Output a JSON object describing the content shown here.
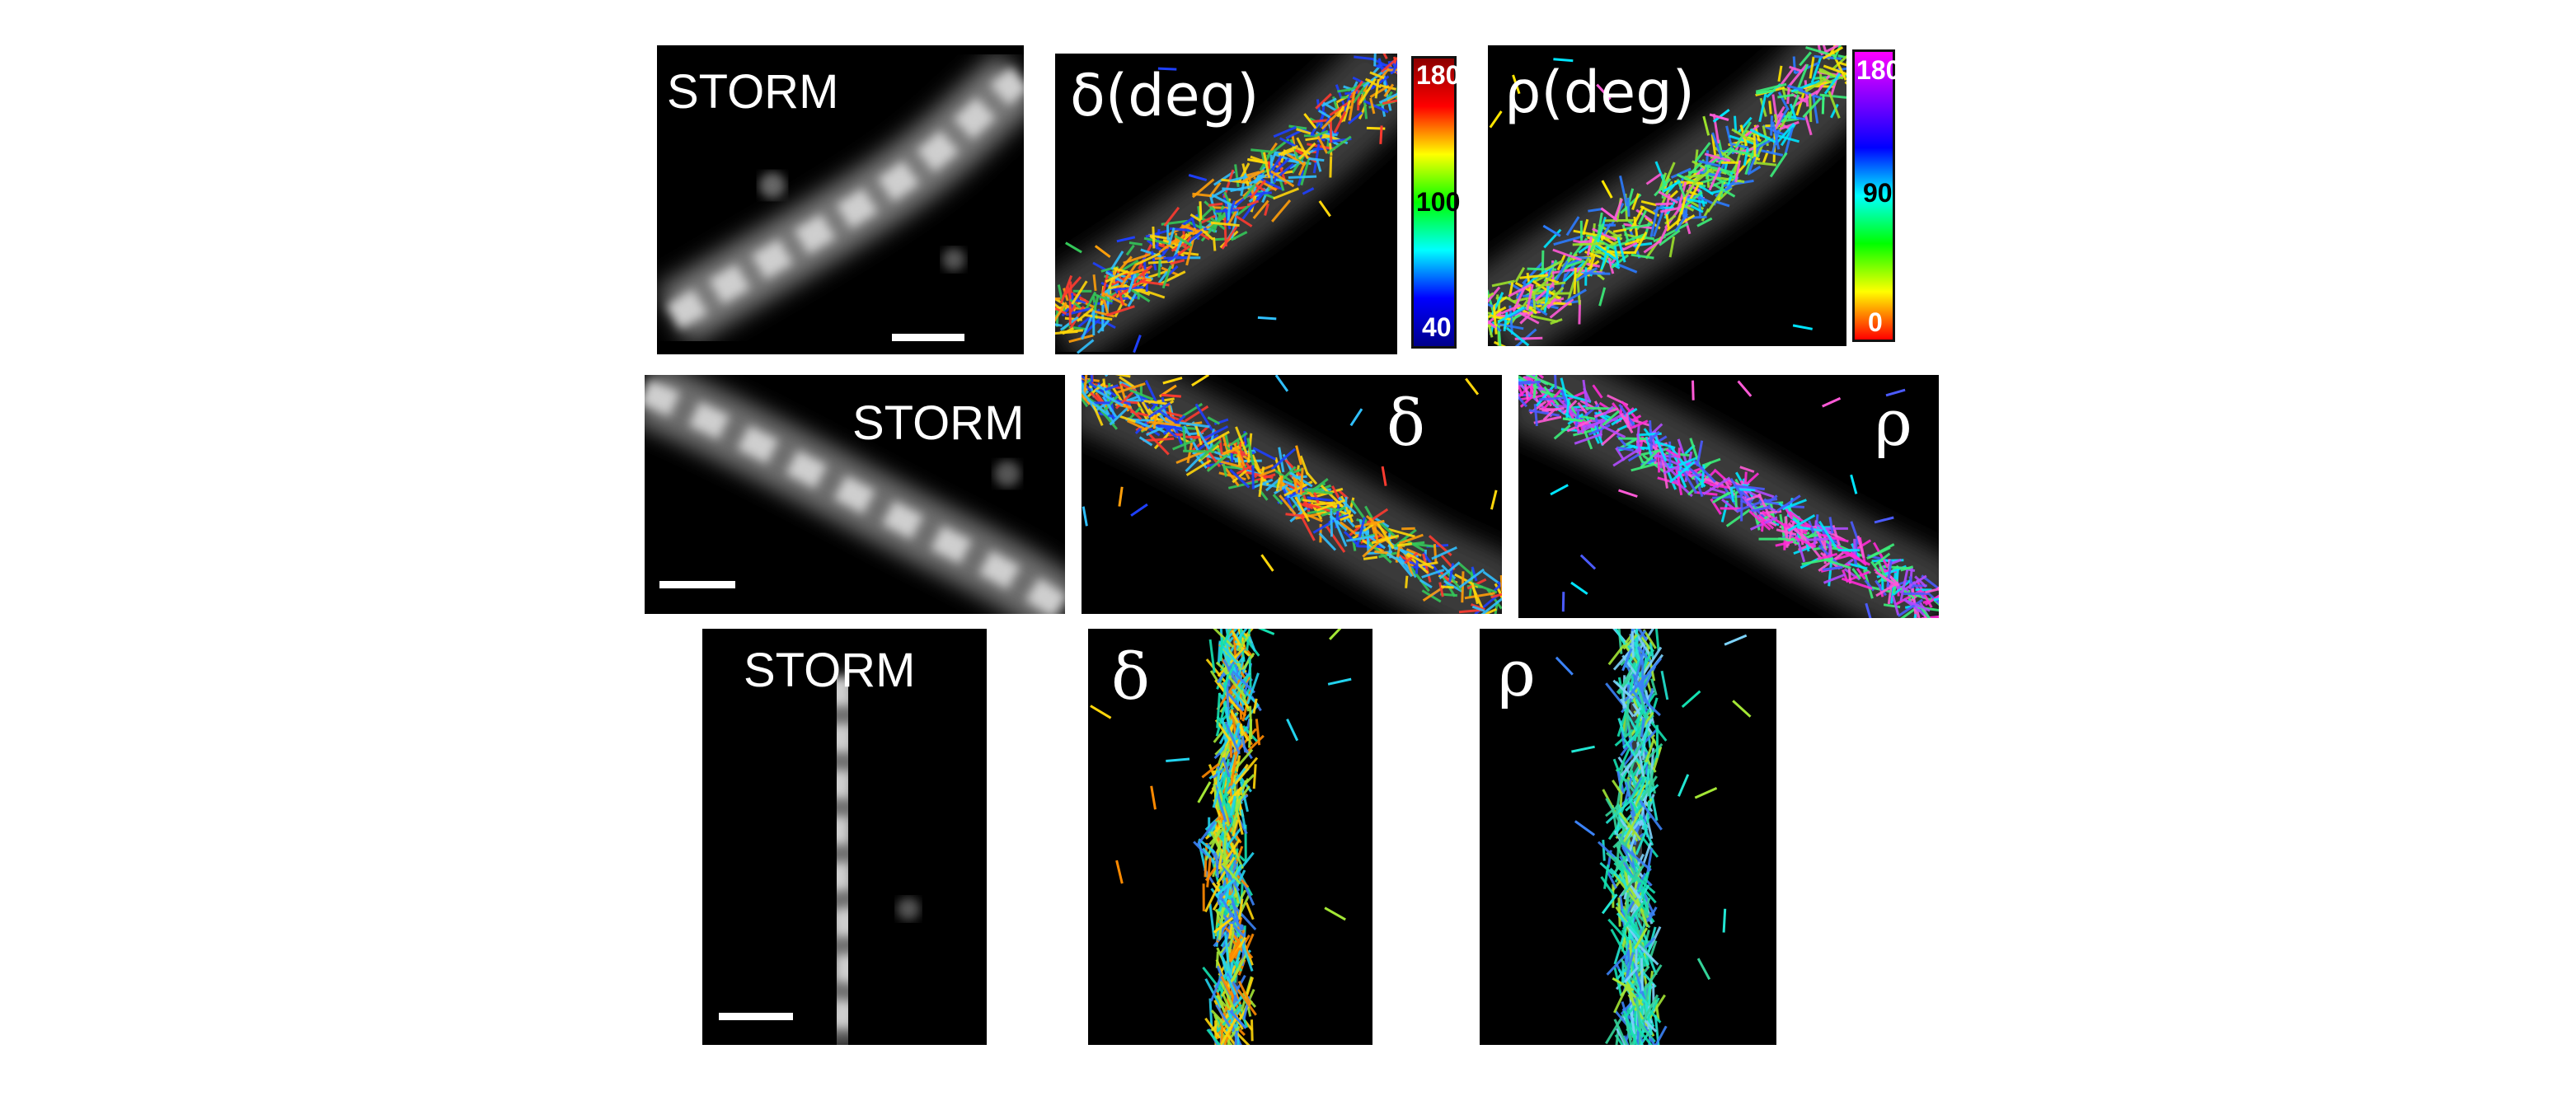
{
  "rows": [
    {
      "storm_label": "STORM",
      "delta_label": "δ(deg)",
      "rho_label": "ρ(deg)",
      "delta_colorbar": {
        "ticks": [
          "180",
          "100",
          "40"
        ],
        "colors": [
          "#8b0000",
          "#ff0000",
          "#ffff00",
          "#00ff00",
          "#00ffff",
          "#0000ff",
          "#00008b"
        ]
      },
      "rho_colorbar": {
        "ticks": [
          "180",
          "90",
          "0"
        ],
        "colors": [
          "#ff00ff",
          "#8000ff",
          "#0000ff",
          "#00ffff",
          "#00ff00",
          "#ffff00",
          "#ff0000"
        ]
      }
    },
    {
      "storm_label": "STORM",
      "delta_label": "δ",
      "rho_label": "ρ"
    },
    {
      "storm_label": "STORM",
      "delta_label": "δ",
      "rho_label": "ρ"
    }
  ],
  "stick_palettes": {
    "delta_row1": [
      "#ff3b30",
      "#ffd60a",
      "#34c759",
      "#30c0ff",
      "#1e40ff",
      "#ff9f0a"
    ],
    "rho_row1": [
      "#9be12b",
      "#ffe600",
      "#3cf07a",
      "#00e5ff",
      "#ff5ad7",
      "#2b7bff"
    ],
    "delta_row2": [
      "#ffd60a",
      "#34c759",
      "#30c0ff",
      "#1e40ff",
      "#ff9f0a",
      "#ff3b30"
    ],
    "rho_row2": [
      "#ff2bd6",
      "#b14bff",
      "#4b5bff",
      "#ff5ad7",
      "#3cf07a",
      "#00e5ff"
    ],
    "delta_row3": [
      "#22d3ee",
      "#14e0b0",
      "#3b82f6",
      "#ffd60a",
      "#ff8a00",
      "#a3e635"
    ],
    "rho_row3": [
      "#22e6d3",
      "#14e0b0",
      "#3b82f6",
      "#7dd3fc",
      "#34d399",
      "#a3e635"
    ]
  }
}
